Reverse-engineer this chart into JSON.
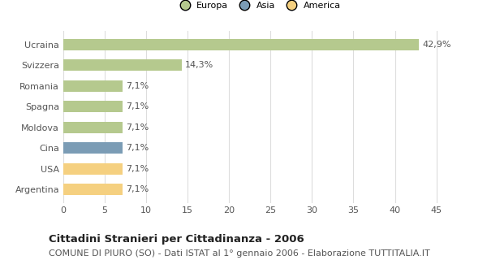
{
  "categories": [
    "Ucraina",
    "Svizzera",
    "Romania",
    "Spagna",
    "Moldova",
    "Cina",
    "USA",
    "Argentina"
  ],
  "values": [
    42.9,
    14.3,
    7.1,
    7.1,
    7.1,
    7.1,
    7.1,
    7.1
  ],
  "labels": [
    "42,9%",
    "14,3%",
    "7,1%",
    "7,1%",
    "7,1%",
    "7,1%",
    "7,1%",
    "7,1%"
  ],
  "colors": [
    "#b5c98e",
    "#b5c98e",
    "#b5c98e",
    "#b5c98e",
    "#b5c98e",
    "#7b9cb5",
    "#f5d080",
    "#f5d080"
  ],
  "legend_labels": [
    "Europa",
    "Asia",
    "America"
  ],
  "legend_colors": [
    "#b5c98e",
    "#7b9cb5",
    "#f5d080"
  ],
  "xlim": [
    0,
    47
  ],
  "xticks": [
    0,
    5,
    10,
    15,
    20,
    25,
    30,
    35,
    40,
    45
  ],
  "title": "Cittadini Stranieri per Cittadinanza - 2006",
  "subtitle": "COMUNE DI PIURO (SO) - Dati ISTAT al 1° gennaio 2006 - Elaborazione TUTTITALIA.IT",
  "bg_color": "#ffffff",
  "bar_height": 0.55,
  "title_fontsize": 9.5,
  "subtitle_fontsize": 8,
  "label_fontsize": 8,
  "tick_fontsize": 8
}
